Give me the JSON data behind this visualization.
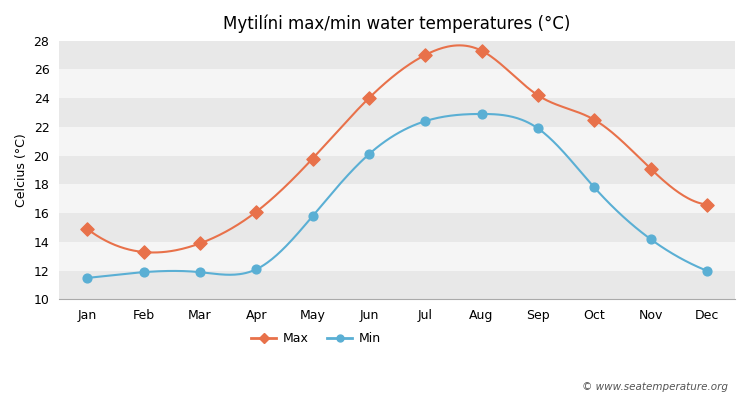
{
  "title": "Mytilíni max/min water temperatures (°C)",
  "ylabel": "Celcius (°C)",
  "months": [
    "Jan",
    "Feb",
    "Mar",
    "Apr",
    "May",
    "Jun",
    "Jul",
    "Aug",
    "Sep",
    "Oct",
    "Nov",
    "Dec"
  ],
  "max_temps": [
    14.9,
    13.3,
    13.9,
    16.1,
    19.8,
    24.0,
    27.0,
    27.3,
    24.2,
    22.5,
    19.1,
    16.6
  ],
  "min_temps": [
    11.5,
    11.9,
    11.9,
    12.1,
    15.8,
    20.1,
    22.4,
    22.9,
    21.9,
    17.8,
    14.2,
    12.0
  ],
  "max_color": "#e8714a",
  "min_color": "#5aafd4",
  "fig_bg_color": "#ffffff",
  "band_colors": [
    "#e8e8e8",
    "#f5f5f5"
  ],
  "ylim": [
    10,
    28
  ],
  "yticks": [
    10,
    12,
    14,
    16,
    18,
    20,
    22,
    24,
    26,
    28
  ],
  "watermark": "© www.seatemperature.org",
  "legend_max": "Max",
  "legend_min": "Min",
  "title_fontsize": 12,
  "axis_fontsize": 9,
  "tick_fontsize": 9
}
